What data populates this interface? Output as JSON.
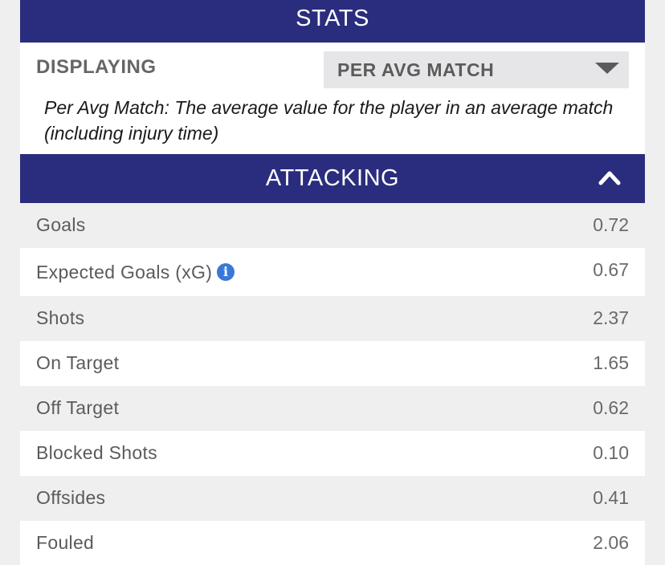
{
  "stats_header": {
    "title": "STATS"
  },
  "display_control": {
    "label": "DISPLAYING",
    "selected_value": "PER AVG MATCH",
    "description": "Per Avg Match: The average value for the player in an average match (including injury time)"
  },
  "attacking_section": {
    "title": "ATTACKING",
    "collapse_icon": "chevron-up-icon",
    "rows": [
      {
        "label": "Goals",
        "value": "0.72"
      },
      {
        "label": "Expected Goals (xG)",
        "value": "0.67",
        "info_icon": "info-icon"
      },
      {
        "label": "Shots",
        "value": "2.37"
      },
      {
        "label": "On Target",
        "value": "1.65"
      },
      {
        "label": "Off Target",
        "value": "0.62"
      },
      {
        "label": "Blocked Shots",
        "value": "0.10"
      },
      {
        "label": "Offsides",
        "value": "0.41"
      },
      {
        "label": "Fouled",
        "value": "2.06"
      }
    ]
  },
  "colors": {
    "header_bg": "#2a2d7d",
    "header_text": "#ffffff",
    "alt_row_bg": "#efeff0",
    "info_icon": "#3a78d8"
  }
}
